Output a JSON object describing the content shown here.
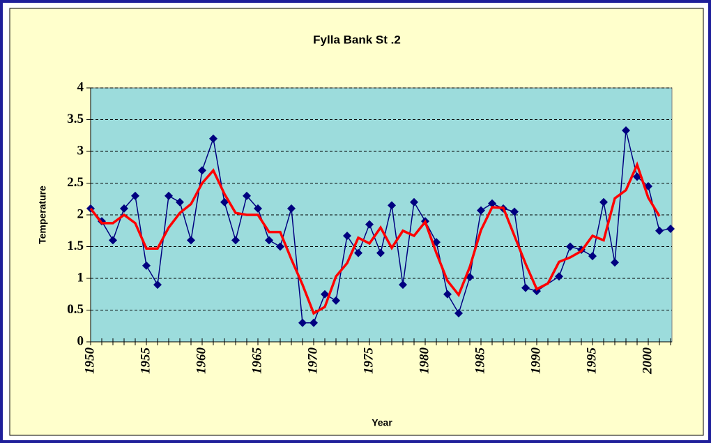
{
  "chart_data": {
    "type": "line",
    "title": "Fylla Bank St .2",
    "x_label": "Year",
    "y_label": "Temperature",
    "xlim": [
      1950,
      2002
    ],
    "xticks": [
      1950,
      1955,
      1960,
      1965,
      1970,
      1975,
      1980,
      1985,
      1990,
      1995,
      2000
    ],
    "ylim": [
      0,
      4
    ],
    "yticks": [
      0,
      0.5,
      1,
      1.5,
      2,
      2.5,
      3,
      3.5,
      4
    ],
    "grid": true,
    "series": [
      {
        "color": "#000080",
        "marker": "diamond",
        "x": [
          1950,
          1951,
          1952,
          1953,
          1954,
          1955,
          1956,
          1957,
          1958,
          1959,
          1960,
          1961,
          1962,
          1963,
          1964,
          1965,
          1966,
          1967,
          1968,
          1969,
          1970,
          1971,
          1972,
          1973,
          1974,
          1975,
          1976,
          1977,
          1978,
          1979,
          1980,
          1981,
          1982,
          1983,
          1984,
          1985,
          1986,
          1987,
          1988,
          1989,
          1990,
          1992,
          1993,
          1994,
          1995,
          1996,
          1997,
          1998,
          1999,
          2000,
          2001,
          2002
        ],
        "values": [
          2.1,
          1.9,
          1.6,
          2.1,
          2.3,
          1.2,
          0.9,
          2.3,
          2.2,
          1.6,
          2.7,
          3.2,
          2.2,
          1.6,
          2.3,
          2.1,
          1.6,
          1.5,
          2.1,
          0.3,
          0.3,
          0.75,
          0.65,
          1.67,
          1.4,
          1.85,
          1.4,
          2.15,
          0.9,
          2.2,
          1.9,
          1.57,
          0.75,
          0.45,
          1.02,
          2.07,
          2.18,
          2.1,
          2.05,
          0.85,
          0.8,
          1.03,
          1.5,
          1.45,
          1.35,
          2.2,
          1.25,
          3.33,
          2.6,
          2.45,
          1.75,
          1.78
        ]
      },
      {
        "color": "#ff0000",
        "marker": "none",
        "x": [
          1950,
          1951,
          1952,
          1953,
          1954,
          1955,
          1956,
          1957,
          1958,
          1959,
          1960,
          1961,
          1962,
          1963,
          1964,
          1965,
          1966,
          1967,
          1968,
          1969,
          1970,
          1971,
          1972,
          1973,
          1974,
          1975,
          1976,
          1977,
          1978,
          1979,
          1980,
          1981,
          1982,
          1983,
          1984,
          1985,
          1986,
          1987,
          1988,
          1989,
          1990,
          1991,
          1992,
          1993,
          1994,
          1995,
          1996,
          1997,
          1998,
          1999,
          2000,
          2001
        ],
        "values": [
          2.1,
          1.87,
          1.87,
          2.0,
          1.87,
          1.47,
          1.47,
          1.8,
          2.03,
          2.17,
          2.5,
          2.7,
          2.33,
          2.03,
          2.0,
          2.0,
          1.73,
          1.73,
          1.3,
          0.9,
          0.45,
          0.55,
          1.03,
          1.24,
          1.64,
          1.55,
          1.8,
          1.48,
          1.75,
          1.67,
          1.89,
          1.4,
          0.96,
          0.74,
          1.18,
          1.76,
          2.12,
          2.11,
          1.67,
          1.23,
          0.83,
          0.92,
          1.26,
          1.33,
          1.43,
          1.67,
          1.6,
          2.26,
          2.39,
          2.79,
          2.27,
          1.98
        ]
      }
    ]
  }
}
